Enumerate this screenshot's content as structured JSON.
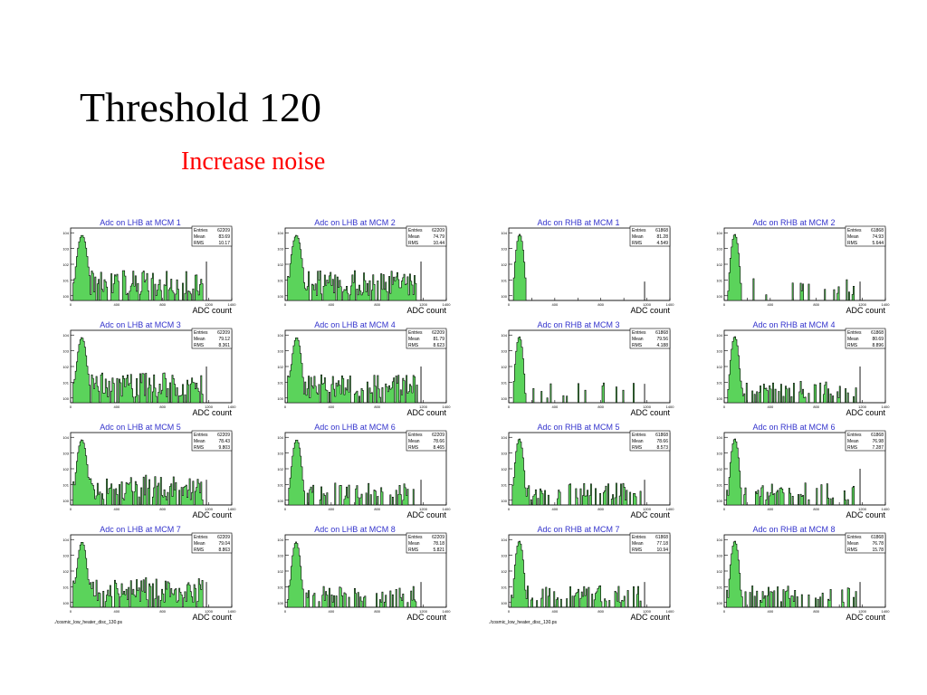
{
  "slide": {
    "title": "Threshold 120",
    "subtitle": "Increase noise"
  },
  "colors": {
    "title": "#000000",
    "subtitle": "#ff0000",
    "hist_fill": "#5bd35b",
    "hist_line": "#000000",
    "plot_title": "#3333cc"
  },
  "footer": {
    "file_left": "./cosmic_low_heater_disc_130.ps",
    "file_right": "./cosmic_low_heater_disc_130.ps"
  },
  "chart_data": [
    {
      "type": "bar",
      "title": "Adc on LHB at MCM 1",
      "xlabel": "ADC count",
      "ylabel": "",
      "ylim": [
        0.5,
        20000
      ],
      "ylog": true,
      "xlim": [
        0,
        1400
      ],
      "stats": {
        "entries_label": "Entries",
        "entries": "62209",
        "mean_label": "Mean",
        "mean": "83.69",
        "rms_label": "RMS",
        "rms": "10.17"
      },
      "peak": {
        "center": 100,
        "width": 18,
        "height": 7000
      },
      "noise": "high",
      "spike": {
        "x": 1180,
        "height": 150
      }
    },
    {
      "type": "bar",
      "title": "Adc on LHB at MCM 2",
      "xlabel": "ADC count",
      "ylabel": "",
      "ylim": [
        0.5,
        20000
      ],
      "ylog": true,
      "xlim": [
        0,
        1400
      ],
      "stats": {
        "entries_label": "Entries",
        "entries": "62209",
        "mean_label": "Mean",
        "mean": "74.79",
        "rms_label": "RMS",
        "rms": "10.44"
      },
      "peak": {
        "center": 98,
        "width": 18,
        "height": 7000
      },
      "noise": "high",
      "spike": {
        "x": 1180,
        "height": 150
      }
    },
    {
      "type": "bar",
      "title": "Adc on RHB at MCM 1",
      "xlabel": "ADC count",
      "ylabel": "",
      "ylim": [
        0.5,
        20000
      ],
      "ylog": true,
      "xlim": [
        0,
        1400
      ],
      "stats": {
        "entries_label": "Entries",
        "entries": "61868",
        "mean_label": "Mean",
        "mean": "81.28",
        "rms_label": "RMS",
        "rms": "4.549"
      },
      "peak": {
        "center": 95,
        "width": 14,
        "height": 8000
      },
      "noise": "none",
      "spike": {
        "x": 1180,
        "height": 8
      }
    },
    {
      "type": "bar",
      "title": "Adc on RHB at MCM 2",
      "xlabel": "ADC count",
      "ylabel": "",
      "ylim": [
        0.5,
        20000
      ],
      "ylog": true,
      "xlim": [
        0,
        1400
      ],
      "stats": {
        "entries_label": "Entries",
        "entries": "61868",
        "mean_label": "Mean",
        "mean": "74.93",
        "rms_label": "RMS",
        "rms": "5.644"
      },
      "peak": {
        "center": 92,
        "width": 14,
        "height": 8000
      },
      "noise": "low",
      "spike": {
        "x": 1180,
        "height": 8
      }
    },
    {
      "type": "bar",
      "title": "Adc on LHB at MCM 3",
      "xlabel": "ADC count",
      "ylabel": "",
      "ylim": [
        0.5,
        20000
      ],
      "ylog": true,
      "xlim": [
        0,
        1400
      ],
      "stats": {
        "entries_label": "Entries",
        "entries": "62209",
        "mean_label": "Mean",
        "mean": "79.12",
        "rms_label": "RMS",
        "rms": "8.361"
      },
      "peak": {
        "center": 98,
        "width": 16,
        "height": 7000
      },
      "noise": "high",
      "spike": {
        "x": 1180,
        "height": 100
      }
    },
    {
      "type": "bar",
      "title": "Adc on LHB at MCM 4",
      "xlabel": "ADC count",
      "ylabel": "",
      "ylim": [
        0.5,
        20000
      ],
      "ylog": true,
      "xlim": [
        0,
        1400
      ],
      "stats": {
        "entries_label": "Entries",
        "entries": "62209",
        "mean_label": "Mean",
        "mean": "81.79",
        "rms_label": "RMS",
        "rms": "8.623"
      },
      "peak": {
        "center": 100,
        "width": 16,
        "height": 7000
      },
      "noise": "high",
      "spike": {
        "x": 1180,
        "height": 100
      }
    },
    {
      "type": "bar",
      "title": "Adc on RHB at MCM 3",
      "xlabel": "ADC count",
      "ylabel": "",
      "ylim": [
        0.5,
        20000
      ],
      "ylog": true,
      "xlim": [
        0,
        1400
      ],
      "stats": {
        "entries_label": "Entries",
        "entries": "61868",
        "mean_label": "Mean",
        "mean": "79.56",
        "rms_label": "RMS",
        "rms": "4.188"
      },
      "peak": {
        "center": 92,
        "width": 13,
        "height": 8000
      },
      "noise": "low",
      "spike": {
        "x": 1180,
        "height": 8
      }
    },
    {
      "type": "bar",
      "title": "Adc on RHB at MCM 4",
      "xlabel": "ADC count",
      "ylabel": "",
      "ylim": [
        0.5,
        20000
      ],
      "ylog": true,
      "xlim": [
        0,
        1400
      ],
      "stats": {
        "entries_label": "Entries",
        "entries": "61868",
        "mean_label": "Mean",
        "mean": "80.69",
        "rms_label": "RMS",
        "rms": "8.896"
      },
      "peak": {
        "center": 92,
        "width": 14,
        "height": 8000
      },
      "noise": "medium",
      "spike": {
        "x": 1180,
        "height": 100
      }
    },
    {
      "type": "bar",
      "title": "Adc on LHB at MCM 5",
      "xlabel": "ADC count",
      "ylabel": "",
      "ylim": [
        0.5,
        20000
      ],
      "ylog": true,
      "xlim": [
        0,
        1400
      ],
      "stats": {
        "entries_label": "Entries",
        "entries": "62209",
        "mean_label": "Mean",
        "mean": "78.43",
        "rms_label": "RMS",
        "rms": "9.803"
      },
      "peak": {
        "center": 98,
        "width": 17,
        "height": 7000
      },
      "noise": "high",
      "spike": {
        "x": 1180,
        "height": 20
      }
    },
    {
      "type": "bar",
      "title": "Adc on LHB at MCM 6",
      "xlabel": "ADC count",
      "ylabel": "",
      "ylim": [
        0.5,
        20000
      ],
      "ylog": true,
      "xlim": [
        0,
        1400
      ],
      "stats": {
        "entries_label": "Entries",
        "entries": "62209",
        "mean_label": "Mean",
        "mean": "78.66",
        "rms_label": "RMS",
        "rms": "8.465"
      },
      "peak": {
        "center": 100,
        "width": 16,
        "height": 7000
      },
      "noise": "medium",
      "spike": {
        "x": 1180,
        "height": 20
      }
    },
    {
      "type": "bar",
      "title": "Adc on RHB at MCM 5",
      "xlabel": "ADC count",
      "ylabel": "",
      "ylim": [
        0.5,
        20000
      ],
      "ylog": true,
      "xlim": [
        0,
        1400
      ],
      "stats": {
        "entries_label": "Entries",
        "entries": "61868",
        "mean_label": "Mean",
        "mean": "78.66",
        "rms_label": "RMS",
        "rms": "8.573"
      },
      "peak": {
        "center": 92,
        "width": 14,
        "height": 8000
      },
      "noise": "medium",
      "spike": {
        "x": 1180,
        "height": 20
      }
    },
    {
      "type": "bar",
      "title": "Adc on RHB at MCM 6",
      "xlabel": "ADC count",
      "ylabel": "",
      "ylim": [
        0.5,
        20000
      ],
      "ylog": true,
      "xlim": [
        0,
        1400
      ],
      "stats": {
        "entries_label": "Entries",
        "entries": "61868",
        "mean_label": "Mean",
        "mean": "76.98",
        "rms_label": "RMS",
        "rms": "7.287"
      },
      "peak": {
        "center": 92,
        "width": 14,
        "height": 8000
      },
      "noise": "medium",
      "spike": {
        "x": 1180,
        "height": 100
      }
    },
    {
      "type": "bar",
      "title": "Adc on LHB at MCM 7",
      "xlabel": "ADC count",
      "ylabel": "",
      "ylim": [
        0.5,
        20000
      ],
      "ylog": true,
      "xlim": [
        0,
        1400
      ],
      "stats": {
        "entries_label": "Entries",
        "entries": "62209",
        "mean_label": "Mean",
        "mean": "79.04",
        "rms_label": "RMS",
        "rms": "8.863"
      },
      "peak": {
        "center": 100,
        "width": 16,
        "height": 7000
      },
      "noise": "high",
      "spike": {
        "x": 1180,
        "height": 20
      }
    },
    {
      "type": "bar",
      "title": "Adc on LHB at MCM 8",
      "xlabel": "ADC count",
      "ylabel": "",
      "ylim": [
        0.5,
        20000
      ],
      "ylog": true,
      "xlim": [
        0,
        1400
      ],
      "stats": {
        "entries_label": "Entries",
        "entries": "62209",
        "mean_label": "Mean",
        "mean": "78.18",
        "rms_label": "RMS",
        "rms": "5.821"
      },
      "peak": {
        "center": 95,
        "width": 15,
        "height": 7000
      },
      "noise": "medium",
      "spike": {
        "x": 1180,
        "height": 20
      }
    },
    {
      "type": "bar",
      "title": "Adc on RHB at MCM 7",
      "xlabel": "ADC count",
      "ylabel": "",
      "ylim": [
        0.5,
        20000
      ],
      "ylog": true,
      "xlim": [
        0,
        1400
      ],
      "stats": {
        "entries_label": "Entries",
        "entries": "61868",
        "mean_label": "Mean",
        "mean": "77.18",
        "rms_label": "RMS",
        "rms": "10.94"
      },
      "peak": {
        "center": 92,
        "width": 14,
        "height": 8000
      },
      "noise": "medium",
      "spike": {
        "x": 1180,
        "height": 20
      }
    },
    {
      "type": "bar",
      "title": "Adc on RHB at MCM 8",
      "xlabel": "ADC count",
      "ylabel": "",
      "ylim": [
        0.5,
        20000
      ],
      "ylog": true,
      "xlim": [
        0,
        1400
      ],
      "stats": {
        "entries_label": "Entries",
        "entries": "61868",
        "mean_label": "Mean",
        "mean": "76.78",
        "rms_label": "RMS",
        "rms": "15.78"
      },
      "peak": {
        "center": 92,
        "width": 14,
        "height": 8000
      },
      "noise": "medium",
      "spike": {
        "x": 1180,
        "height": 20
      }
    }
  ]
}
